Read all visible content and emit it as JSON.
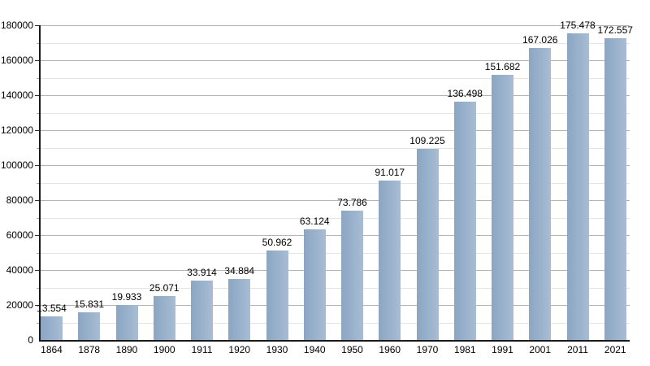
{
  "chart_data": {
    "type": "bar",
    "title": "",
    "xlabel": "",
    "ylabel": "",
    "categories": [
      "1864",
      "1878",
      "1890",
      "1900",
      "1911",
      "1920",
      "1930",
      "1940",
      "1950",
      "1960",
      "1970",
      "1981",
      "1991",
      "2001",
      "2011",
      "2021"
    ],
    "values": [
      13554,
      15831,
      19933,
      25071,
      33914,
      34884,
      50962,
      63124,
      73786,
      91017,
      109225,
      136498,
      151682,
      167026,
      175478,
      172557
    ],
    "value_labels": [
      "13.554",
      "15.831",
      "19.933",
      "25.071",
      "33.914",
      "34.884",
      "50.962",
      "63.124",
      "73.786",
      "91.017",
      "109.225",
      "136.498",
      "151.682",
      "167.026",
      "175.478",
      "172.557"
    ],
    "ylim": [
      0,
      180000
    ],
    "y_major_tick_step": 20000,
    "y_minor_tick_step": 10000,
    "y_major_tick_labels": [
      "0",
      "20000",
      "40000",
      "60000",
      "80000",
      "100000",
      "120000",
      "140000",
      "160000",
      "180000"
    ],
    "grid": true,
    "legend": "none",
    "colors": {
      "bar_fill": "#9ab2cc",
      "bar_fill_dark": "#8ba6c3",
      "bar_fill_light": "#a9bdd4",
      "major_grid": "#b5b5b5",
      "minor_grid": "#e4e4e4",
      "axis": "#1a1a1a",
      "text": "#000000",
      "background": "#ffffff"
    }
  }
}
